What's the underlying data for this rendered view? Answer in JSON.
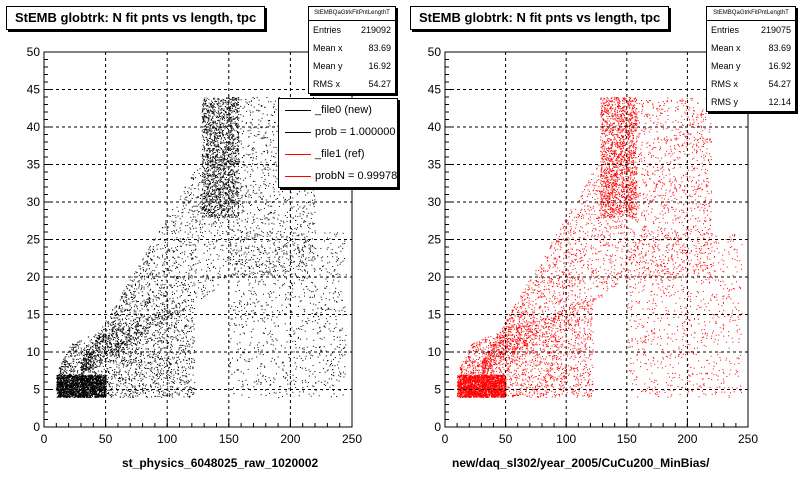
{
  "chart_data": [
    {
      "type": "scatter",
      "title": "StEMB globtrk: N fit pnts vs length, tpc",
      "xlabel": "st_physics_6048025_raw_1020002",
      "ylabel": "",
      "xlim": [
        0,
        250
      ],
      "ylim": [
        0,
        50
      ],
      "xticks": [
        "0",
        "50",
        "100",
        "150",
        "200",
        "250"
      ],
      "yticks": [
        "0",
        "5",
        "10",
        "15",
        "20",
        "25",
        "30",
        "35",
        "40",
        "45",
        "50"
      ],
      "grid": true,
      "point_color": "#000000",
      "stats": {
        "header": "StEMBQaGtrkFitPntLengthT",
        "rows": [
          {
            "label": "Entries",
            "value": "219092"
          },
          {
            "label": "Mean x",
            "value": "83.69"
          },
          {
            "label": "Mean y",
            "value": "16.92"
          },
          {
            "label": "RMS x",
            "value": "54.27"
          }
        ]
      },
      "legend": {
        "placement": "right",
        "entries": [
          {
            "label": "_file0 (new)",
            "color": "#000000"
          },
          {
            "label": "prob = 1.000000",
            "color": "#000000"
          },
          {
            "label": "_file1 (ref)",
            "color": "#ff0000"
          },
          {
            "label": "probN = 0.99978",
            "color": "#ff0000"
          }
        ]
      }
    },
    {
      "type": "scatter",
      "title": "StEMB globtrk: N fit pnts vs length, tpc",
      "xlabel": "new/daq_sl302/year_2005/CuCu200_MinBias/",
      "ylabel": "",
      "xlim": [
        0,
        250
      ],
      "ylim": [
        0,
        50
      ],
      "xticks": [
        "0",
        "50",
        "100",
        "150",
        "200",
        "250"
      ],
      "yticks": [
        "0",
        "5",
        "10",
        "15",
        "20",
        "25",
        "30",
        "35",
        "40",
        "45",
        "50"
      ],
      "grid": true,
      "point_color": "#ff0000",
      "stats": {
        "header": "StEMBQaGtrkFitPntLengthT",
        "rows": [
          {
            "label": "Entries",
            "value": "219075"
          },
          {
            "label": "Mean x",
            "value": "83.69"
          },
          {
            "label": "Mean y",
            "value": "16.92"
          },
          {
            "label": "RMS x",
            "value": "54.27"
          },
          {
            "label": "RMS y",
            "value": "12.14"
          }
        ]
      }
    }
  ]
}
